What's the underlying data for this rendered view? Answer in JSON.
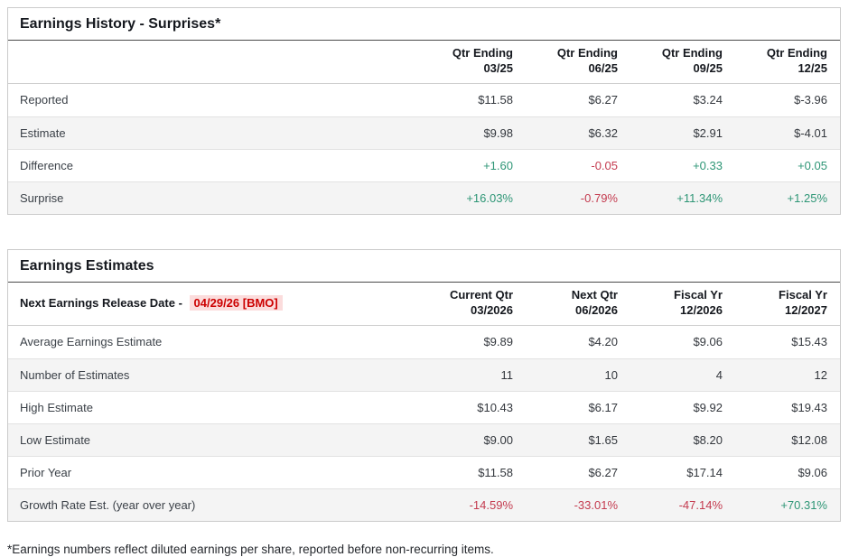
{
  "colors": {
    "positive": "#2e9676",
    "negative": "#c43b4f",
    "release_date_text": "#cc0000",
    "release_date_bg": "#fbdcdc",
    "row_alt_bg": "#f4f4f4",
    "border": "#cbcbcb",
    "title_border": "#4a4a4a",
    "text_dark": "#15181e",
    "text_body": "#3b4148"
  },
  "earnings_history": {
    "title": "Earnings History - Surprises*",
    "columns": [
      {
        "line1": "Qtr Ending",
        "line2": "03/25"
      },
      {
        "line1": "Qtr Ending",
        "line2": "06/25"
      },
      {
        "line1": "Qtr Ending",
        "line2": "09/25"
      },
      {
        "line1": "Qtr Ending",
        "line2": "12/25"
      }
    ],
    "rows": [
      {
        "label": "Reported",
        "values": [
          "$11.58",
          "$6.27",
          "$3.24",
          "$-3.96"
        ],
        "sentiment": [
          "",
          "",
          "",
          ""
        ]
      },
      {
        "label": "Estimate",
        "values": [
          "$9.98",
          "$6.32",
          "$2.91",
          "$-4.01"
        ],
        "sentiment": [
          "",
          "",
          "",
          ""
        ]
      },
      {
        "label": "Difference",
        "values": [
          "+1.60",
          "-0.05",
          "+0.33",
          "+0.05"
        ],
        "sentiment": [
          "pos",
          "neg",
          "pos",
          "pos"
        ]
      },
      {
        "label": "Surprise",
        "values": [
          "+16.03%",
          "-0.79%",
          "+11.34%",
          "+1.25%"
        ],
        "sentiment": [
          "pos",
          "neg",
          "pos",
          "pos"
        ]
      }
    ]
  },
  "earnings_estimates": {
    "title": "Earnings Estimates",
    "release_date_label": "Next Earnings Release Date -",
    "release_date_value": "04/29/26 [BMO]",
    "columns": [
      {
        "line1": "Current Qtr",
        "line2": "03/2026"
      },
      {
        "line1": "Next Qtr",
        "line2": "06/2026"
      },
      {
        "line1": "Fiscal Yr",
        "line2": "12/2026"
      },
      {
        "line1": "Fiscal Yr",
        "line2": "12/2027"
      }
    ],
    "rows": [
      {
        "label": "Average Earnings Estimate",
        "values": [
          "$9.89",
          "$4.20",
          "$9.06",
          "$15.43"
        ],
        "sentiment": [
          "",
          "",
          "",
          ""
        ]
      },
      {
        "label": "Number of Estimates",
        "values": [
          "11",
          "10",
          "4",
          "12"
        ],
        "sentiment": [
          "",
          "",
          "",
          ""
        ]
      },
      {
        "label": "High Estimate",
        "values": [
          "$10.43",
          "$6.17",
          "$9.92",
          "$19.43"
        ],
        "sentiment": [
          "",
          "",
          "",
          ""
        ]
      },
      {
        "label": "Low Estimate",
        "values": [
          "$9.00",
          "$1.65",
          "$8.20",
          "$12.08"
        ],
        "sentiment": [
          "",
          "",
          "",
          ""
        ]
      },
      {
        "label": "Prior Year",
        "values": [
          "$11.58",
          "$6.27",
          "$17.14",
          "$9.06"
        ],
        "sentiment": [
          "",
          "",
          "",
          ""
        ]
      },
      {
        "label": "Growth Rate Est. (year over year)",
        "values": [
          "-14.59%",
          "-33.01%",
          "-47.14%",
          "+70.31%"
        ],
        "sentiment": [
          "neg",
          "neg",
          "neg",
          "pos"
        ]
      }
    ]
  },
  "footnote": "*Earnings numbers reflect diluted earnings per share, reported before non-recurring items."
}
